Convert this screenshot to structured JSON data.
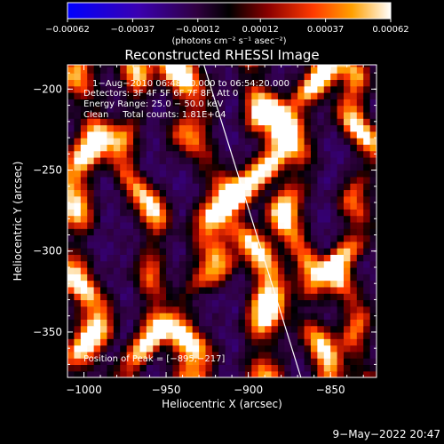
{
  "chart_data": {
    "type": "heatmap",
    "title": "Reconstructed RHESSI Image",
    "xlabel": "Heliocentric X (arcsec)",
    "ylabel": "Heliocentric Y (arcsec)",
    "xlim": [
      -1010,
      -822
    ],
    "ylim": [
      -378,
      -185
    ],
    "xticks": [
      -1000,
      -950,
      -900,
      -850
    ],
    "yticks": [
      -350,
      -300,
      -250,
      -200
    ],
    "xtick_labels": [
      "−1000",
      "−950",
      "−900",
      "−850"
    ],
    "ytick_labels": [
      "−350",
      "−300",
      "−250",
      "−200"
    ],
    "colorbar": {
      "range": [
        -0.00062,
        0.00062
      ],
      "ticks": [
        -0.00062,
        -0.00037,
        -0.00012,
        0.00012,
        0.00037,
        0.00062
      ],
      "tick_labels": [
        "−0.00062",
        "−0.00037",
        "−0.00012",
        "0.00012",
        "0.00037",
        "0.00062"
      ],
      "units": "(photons cm⁻² s⁻¹ asec⁻²)"
    },
    "annotations": [
      "1−Aug−2010 06:48:20.000 to 06:54:20.000",
      "Detectors: 3F 4F 5F 6F 7F 8F, Att 0",
      "Energy Range: 25.0 − 50.0 keV",
      "Clean     Total counts: 1.81E+04"
    ],
    "peak_label": "Position of Peak = [−895,−217]",
    "peak": [
      -895,
      -217
    ],
    "limb_line": [
      [
        -927,
        -185
      ],
      [
        -868,
        -378
      ]
    ],
    "grid": false
  },
  "footer": {
    "date": "9−May−2022 20:47"
  }
}
